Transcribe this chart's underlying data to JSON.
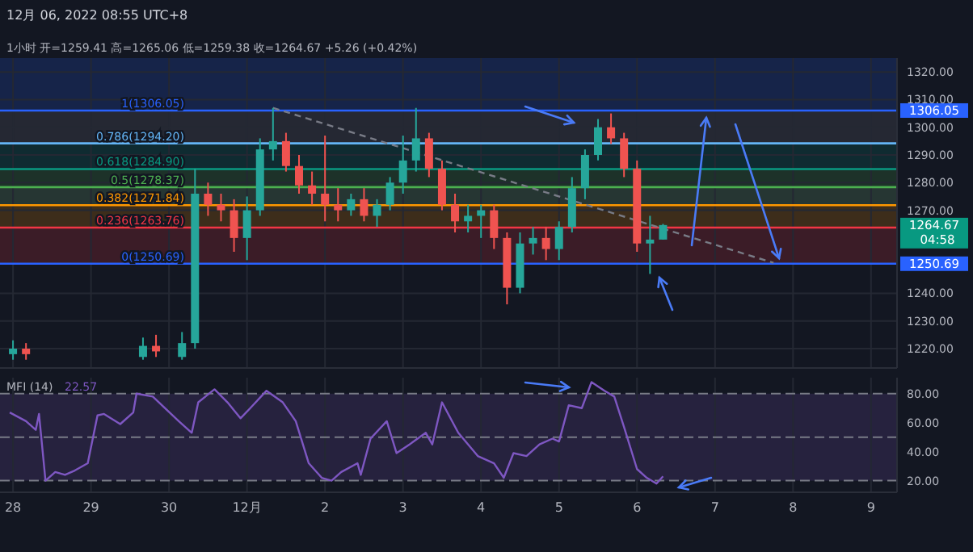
{
  "chart_data": [
    {
      "type": "candlestick",
      "title": "12月 06, 2022 08:55 UTC+8",
      "subtitle": "1小时  开=1259.41 高=1265.06 低=1259.38 收=1264.67 +5.26 (+0.42%)",
      "x": [
        "2022-11-28T00:00",
        "2022-11-28T04:00",
        "2022-11-29T16:00",
        "2022-11-29T20:00",
        "2022-11-30T04:00",
        "2022-11-30T08:00",
        "2022-11-30T12:00",
        "2022-11-30T16:00",
        "2022-11-30T20:00",
        "2022-12-01T00:00",
        "2022-12-01T04:00",
        "2022-12-01T08:00",
        "2022-12-01T12:00",
        "2022-12-01T16:00",
        "2022-12-01T20:00",
        "2022-12-02T00:00",
        "2022-12-02T04:00",
        "2022-12-02T08:00",
        "2022-12-02T12:00",
        "2022-12-02T16:00",
        "2022-12-02T20:00",
        "2022-12-03T00:00",
        "2022-12-03T04:00",
        "2022-12-03T08:00",
        "2022-12-03T12:00",
        "2022-12-03T16:00",
        "2022-12-03T20:00",
        "2022-12-04T00:00",
        "2022-12-04T04:00",
        "2022-12-04T08:00",
        "2022-12-04T12:00",
        "2022-12-04T16:00",
        "2022-12-04T20:00",
        "2022-12-05T00:00",
        "2022-12-05T04:00",
        "2022-12-05T08:00",
        "2022-12-05T12:00",
        "2022-12-05T16:00",
        "2022-12-05T20:00",
        "2022-12-06T00:00",
        "2022-12-06T04:00",
        "2022-12-06T08:00"
      ],
      "ohlc": [
        [
          1218,
          1223,
          1216,
          1220
        ],
        [
          1220,
          1222,
          1216,
          1218
        ],
        [
          1217,
          1224,
          1216,
          1221
        ],
        [
          1221,
          1225,
          1217,
          1219
        ],
        [
          1217,
          1226,
          1216,
          1222
        ],
        [
          1222,
          1285,
          1220,
          1276
        ],
        [
          1276,
          1280,
          1268,
          1272
        ],
        [
          1272,
          1276,
          1266,
          1270
        ],
        [
          1270,
          1274,
          1255,
          1260
        ],
        [
          1260,
          1275,
          1252,
          1270
        ],
        [
          1270,
          1296,
          1268,
          1292
        ],
        [
          1292,
          1307,
          1288,
          1295
        ],
        [
          1295,
          1298,
          1284,
          1286
        ],
        [
          1286,
          1290,
          1276,
          1279
        ],
        [
          1279,
          1284,
          1272,
          1276
        ],
        [
          1276,
          1297,
          1266,
          1272
        ],
        [
          1272,
          1278,
          1266,
          1270
        ],
        [
          1270,
          1276,
          1268,
          1274
        ],
        [
          1274,
          1278,
          1266,
          1268
        ],
        [
          1268,
          1274,
          1264,
          1272
        ],
        [
          1272,
          1282,
          1270,
          1280
        ],
        [
          1280,
          1297,
          1276,
          1288
        ],
        [
          1288,
          1307,
          1284,
          1296
        ],
        [
          1296,
          1298,
          1282,
          1285
        ],
        [
          1285,
          1288,
          1270,
          1272
        ],
        [
          1272,
          1276,
          1262,
          1266
        ],
        [
          1266,
          1272,
          1262,
          1268
        ],
        [
          1268,
          1272,
          1260,
          1270
        ],
        [
          1270,
          1272,
          1256,
          1260
        ],
        [
          1260,
          1262,
          1236,
          1242
        ],
        [
          1242,
          1262,
          1240,
          1258
        ],
        [
          1258,
          1264,
          1254,
          1260
        ],
        [
          1260,
          1264,
          1252,
          1256
        ],
        [
          1256,
          1266,
          1252,
          1264
        ],
        [
          1264,
          1282,
          1262,
          1278
        ],
        [
          1278,
          1292,
          1274,
          1290
        ],
        [
          1290,
          1303,
          1288,
          1300
        ],
        [
          1300,
          1305,
          1294,
          1296
        ],
        [
          1296,
          1298,
          1282,
          1285
        ],
        [
          1285,
          1288,
          1255,
          1258
        ],
        [
          1258,
          1268,
          1247,
          1259.41
        ],
        [
          1259.41,
          1265.06,
          1259.38,
          1264.67
        ]
      ],
      "series": [
        {
          "type": "line",
          "x": [
            "2022-12-01T08:00",
            "2022-12-07T18:00"
          ],
          "values": [
            1307,
            1251
          ],
          "color": "#787b86",
          "line_style": "dashed"
        }
      ],
      "xlim": [
        "2022-11-27T20:00",
        "2022-12-09T08:00"
      ],
      "xticks": [
        {
          "value": "2022-11-28",
          "label": null
        },
        {
          "value": "2022-11-29",
          "label": null
        },
        {
          "value": "2022-11-30",
          "label": null
        },
        {
          "value": "2022-12-01",
          "label": null
        },
        {
          "value": "2022-12-02",
          "label": null
        },
        {
          "value": "2022-12-03",
          "label": null
        },
        {
          "value": "2022-12-04",
          "label": null
        },
        {
          "value": "2022-12-05",
          "label": null
        },
        {
          "value": "2022-12-06",
          "label": null
        },
        {
          "value": "2022-12-07",
          "label": null
        },
        {
          "value": "2022-12-08",
          "label": null
        },
        {
          "value": "2022-12-09",
          "label": null
        }
      ],
      "ylim": [
        1213,
        1325
      ],
      "yticks": [
        {
          "value": 1220,
          "label": "1220.00"
        },
        {
          "value": 1230,
          "label": "1230.00"
        },
        {
          "value": 1240,
          "label": "1240.00"
        },
        {
          "value": 1270,
          "label": "1270.00"
        },
        {
          "value": 1280,
          "label": "1280.00"
        },
        {
          "value": 1290,
          "label": "1290.00"
        },
        {
          "value": 1300,
          "label": "1300.00"
        },
        {
          "value": 1310,
          "label": "1310.00"
        },
        {
          "value": 1320,
          "label": "1320.00"
        }
      ],
      "tick_labels": "y",
      "grid": true,
      "bands": [
        {
          "axis": "y",
          "from": 1306.05,
          "to": 1325,
          "color": "#2962ff"
        },
        {
          "axis": "y",
          "from": 1294.2,
          "to": 1306.05,
          "color": "#787b86"
        },
        {
          "axis": "y",
          "from": 1284.9,
          "to": 1294.2,
          "color": "#00897b"
        },
        {
          "axis": "y",
          "from": 1278.37,
          "to": 1284.9,
          "color": "#4caf50"
        },
        {
          "axis": "y",
          "from": 1271.84,
          "to": 1278.37,
          "color": "#81c784"
        },
        {
          "axis": "y",
          "from": 1263.76,
          "to": 1271.84,
          "color": "#ff9800"
        },
        {
          "axis": "y",
          "from": 1250.69,
          "to": 1263.76,
          "color": "#f23645"
        }
      ],
      "ref_lines": [
        {
          "axis": "y",
          "value": 1306.05,
          "label": "1(1306.05)",
          "color": "#2962ff"
        },
        {
          "axis": "y",
          "value": 1294.2,
          "label": "0.786(1294.20)",
          "color": "#64b5f6"
        },
        {
          "axis": "y",
          "value": 1284.9,
          "label": "0.618(1284.90)",
          "color": "#089981"
        },
        {
          "axis": "y",
          "value": 1278.37,
          "label": "0.5(1278.37)",
          "color": "#4caf50"
        },
        {
          "axis": "y",
          "value": 1271.84,
          "label": "0.382(1271.84)",
          "color": "#ff9800"
        },
        {
          "axis": "y",
          "value": 1263.76,
          "label": "0.236(1263.76)",
          "color": "#f23645"
        },
        {
          "axis": "y",
          "value": 1250.69,
          "label": "0(1250.69)",
          "color": "#2962ff"
        }
      ],
      "annotations": [
        {
          "text": "1306.05",
          "x": "2022-12-09T08:00",
          "y": 1306.05
        },
        {
          "text": "1250.69",
          "x": "2022-12-09T08:00",
          "y": 1250.69
        },
        {
          "text": "1264.67",
          "x": "2022-12-09T08:00",
          "y": 1264.67
        },
        "04:58"
      ]
    },
    {
      "type": "line",
      "title": "MFI (14)",
      "annotations": [
        "22.57"
      ],
      "series": [
        {
          "color": "#7e57c2",
          "x": [
            "2022-11-27T23:00",
            "2022-11-28T04:00",
            "2022-11-28T07:00",
            "2022-11-28T08:00",
            "2022-11-28T10:00",
            "2022-11-28T13:00",
            "2022-11-28T16:00",
            "2022-11-28T19:00",
            "2022-11-28T23:00",
            "2022-11-29T02:00",
            "2022-11-29T04:00",
            "2022-11-29T09:00",
            "2022-11-29T13:00",
            "2022-11-29T14:00",
            "2022-11-29T19:00",
            "2022-11-30T03:00",
            "2022-11-30T07:00",
            "2022-11-30T09:00",
            "2022-11-30T14:00",
            "2022-11-30T18:00",
            "2022-11-30T22:00",
            "2022-12-01T01:00",
            "2022-12-01T06:00",
            "2022-12-01T11:00",
            "2022-12-01T15:00",
            "2022-12-01T19:00",
            "2022-12-01T23:00",
            "2022-12-02T02:00",
            "2022-12-02T05:00",
            "2022-12-02T10:00",
            "2022-12-02T11:00",
            "2022-12-02T14:00",
            "2022-12-02T19:00",
            "2022-12-02T22:00",
            "2022-12-03T02:00",
            "2022-12-03T07:00",
            "2022-12-03T09:00",
            "2022-12-03T12:00",
            "2022-12-03T17:00",
            "2022-12-03T23:00",
            "2022-12-04T04:00",
            "2022-12-04T07:00",
            "2022-12-04T10:00",
            "2022-12-04T14:00",
            "2022-12-04T18:00",
            "2022-12-04T22:00",
            "2022-12-05T00:00",
            "2022-12-05T03:00",
            "2022-12-05T07:00",
            "2022-12-05T10:00",
            "2022-12-05T14:00",
            "2022-12-05T17:00",
            "2022-12-05T20:00",
            "2022-12-06T00:00",
            "2022-12-06T03:00",
            "2022-12-06T06:00",
            "2022-12-06T08:00"
          ],
          "values": [
            67,
            61,
            55,
            66,
            20,
            26,
            24,
            27,
            32,
            65,
            66,
            59,
            67,
            80,
            78,
            61,
            53,
            74,
            83,
            74,
            63,
            70,
            82,
            74,
            61,
            32,
            22,
            20,
            26,
            32,
            24,
            49,
            61,
            39,
            45,
            53,
            45,
            74,
            53,
            37,
            32,
            22,
            39,
            37,
            45,
            49,
            47,
            72,
            70,
            88,
            82,
            78,
            57,
            28,
            22,
            18,
            23
          ]
        }
      ],
      "xlim": [
        "2022-11-27T20:00",
        "2022-12-09T08:00"
      ],
      "xticks": [
        {
          "value": "2022-11-28",
          "label": "28"
        },
        {
          "value": "2022-11-29",
          "label": "29"
        },
        {
          "value": "2022-11-30",
          "label": "30"
        },
        {
          "value": "2022-12-01",
          "label": "12月"
        },
        {
          "value": "2022-12-02",
          "label": "2"
        },
        {
          "value": "2022-12-03",
          "label": "3"
        },
        {
          "value": "2022-12-04",
          "label": "4"
        },
        {
          "value": "2022-12-05",
          "label": "5"
        },
        {
          "value": "2022-12-06",
          "label": "6"
        },
        {
          "value": "2022-12-07",
          "label": "7"
        },
        {
          "value": "2022-12-08",
          "label": "8"
        },
        {
          "value": "2022-12-09",
          "label": "9"
        }
      ],
      "ylim": [
        12,
        91
      ],
      "yticks": [
        {
          "value": 20,
          "label": "20.00"
        },
        {
          "value": 40,
          "label": "40.00"
        },
        {
          "value": 60,
          "label": "60.00"
        },
        {
          "value": 80,
          "label": "80.00"
        }
      ],
      "grid": "x",
      "line_style": "solid",
      "bands": [
        {
          "axis": "y",
          "from": 20,
          "to": 80,
          "color": "#7e57c2"
        }
      ],
      "ref_lines": [
        {
          "axis": "y",
          "value": 80,
          "color": "#787b86",
          "line_style": "dashed"
        },
        {
          "axis": "y",
          "value": 50,
          "color": "#787b86",
          "line_style": "dashed"
        },
        {
          "axis": "y",
          "value": 20,
          "color": "#787b86",
          "line_style": "dashed"
        }
      ]
    }
  ]
}
